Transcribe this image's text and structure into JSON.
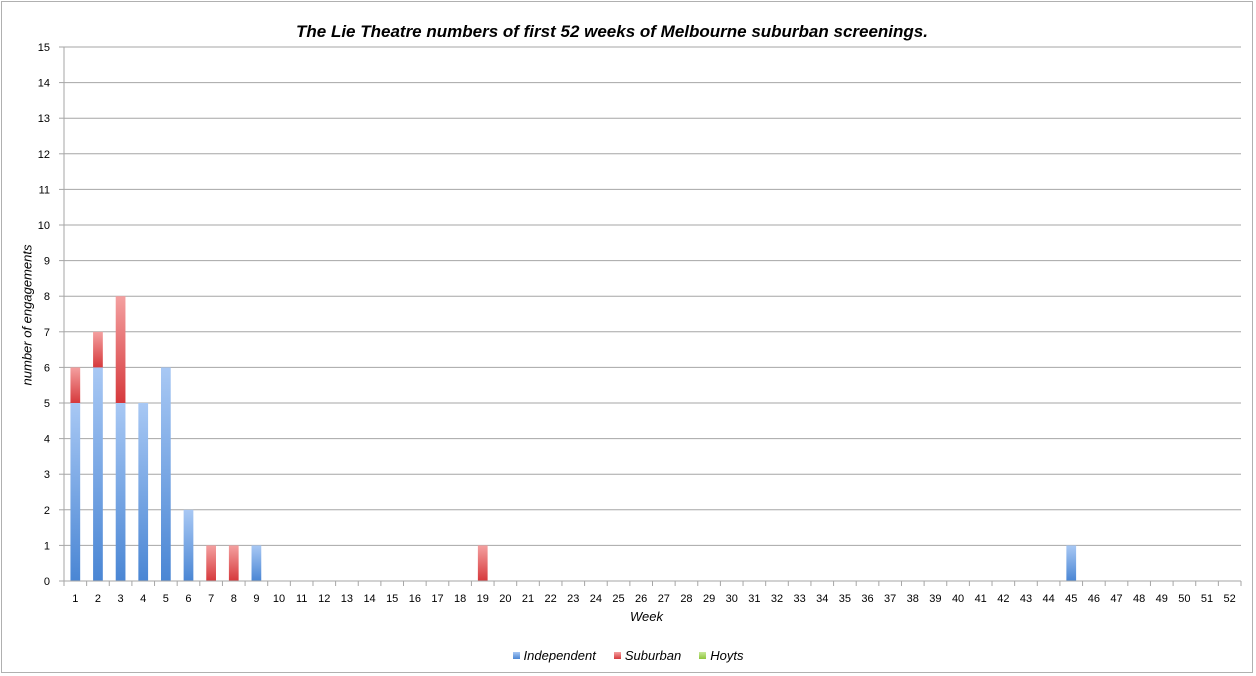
{
  "chart_data": {
    "type": "bar",
    "stacked": true,
    "title": "The Lie Theatre numbers of first 52 weeks of Melbourne suburban screenings.",
    "xlabel": "Week",
    "ylabel": "number of engagements",
    "ylim": [
      0,
      15
    ],
    "yticks": [
      "0",
      "1",
      "2",
      "3",
      "4",
      "5",
      "6",
      "7",
      "8",
      "9",
      "10",
      "11",
      "12",
      "13",
      "14",
      "15"
    ],
    "grid": true,
    "legend_position": "bottom",
    "categories": [
      "1",
      "2",
      "3",
      "4",
      "5",
      "6",
      "7",
      "8",
      "9",
      "10",
      "11",
      "12",
      "13",
      "14",
      "15",
      "16",
      "17",
      "18",
      "19",
      "20",
      "21",
      "22",
      "23",
      "24",
      "25",
      "26",
      "27",
      "28",
      "29",
      "30",
      "31",
      "32",
      "33",
      "34",
      "35",
      "36",
      "37",
      "38",
      "39",
      "40",
      "41",
      "42",
      "43",
      "44",
      "45",
      "46",
      "47",
      "48",
      "49",
      "50",
      "51",
      "52"
    ],
    "series": [
      {
        "name": "Independent",
        "color": "#4a86d4",
        "color_light": "#a8c8f4",
        "values": [
          5,
          6,
          5,
          5,
          6,
          2,
          0,
          0,
          1,
          0,
          0,
          0,
          0,
          0,
          0,
          0,
          0,
          0,
          0,
          0,
          0,
          0,
          0,
          0,
          0,
          0,
          0,
          0,
          0,
          0,
          0,
          0,
          0,
          0,
          0,
          0,
          0,
          0,
          0,
          0,
          0,
          0,
          0,
          0,
          1,
          0,
          0,
          0,
          0,
          0,
          0,
          0
        ]
      },
      {
        "name": "Suburban",
        "color": "#d6393c",
        "color_light": "#f4a0a0",
        "values": [
          1,
          1,
          3,
          0,
          0,
          0,
          1,
          1,
          0,
          0,
          0,
          0,
          0,
          0,
          0,
          0,
          0,
          0,
          1,
          0,
          0,
          0,
          0,
          0,
          0,
          0,
          0,
          0,
          0,
          0,
          0,
          0,
          0,
          0,
          0,
          0,
          0,
          0,
          0,
          0,
          0,
          0,
          0,
          0,
          0,
          0,
          0,
          0,
          0,
          0,
          0,
          0
        ]
      },
      {
        "name": "Hoyts",
        "color": "#8fc63c",
        "color_light": "#c8e89a",
        "values": [
          0,
          0,
          0,
          0,
          0,
          0,
          0,
          0,
          0,
          0,
          0,
          0,
          0,
          0,
          0,
          0,
          0,
          0,
          0,
          0,
          0,
          0,
          0,
          0,
          0,
          0,
          0,
          0,
          0,
          0,
          0,
          0,
          0,
          0,
          0,
          0,
          0,
          0,
          0,
          0,
          0,
          0,
          0,
          0,
          0,
          0,
          0,
          0,
          0,
          0,
          0,
          0
        ]
      }
    ]
  }
}
